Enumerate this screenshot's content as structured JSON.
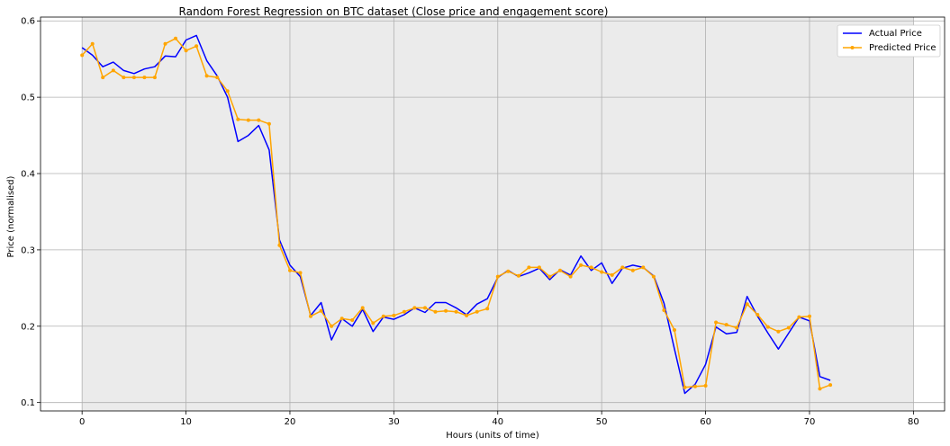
{
  "chart_data": {
    "type": "line",
    "title": "Random Forest Regression on BTC dataset (Close price and engagement score)",
    "xlabel": "Hours (units of time)",
    "ylabel": "Price (normalised)",
    "xlim": [
      -4,
      83
    ],
    "ylim": [
      0.089,
      0.605
    ],
    "xticks": [
      0,
      10,
      20,
      30,
      40,
      50,
      60,
      70,
      80
    ],
    "xtick_labels": [
      "0",
      "10",
      "20",
      "30",
      "40",
      "50",
      "60",
      "70",
      "80"
    ],
    "yticks": [
      0.1,
      0.2,
      0.3,
      0.4,
      0.5,
      0.6
    ],
    "ytick_labels": [
      "0.1",
      "0.2",
      "0.3",
      "0.4",
      "0.5",
      "0.6"
    ],
    "grid": true,
    "plot_background": "#ebebeb",
    "shaded_span": [
      0,
      80
    ],
    "legend_position": "top-right",
    "series": [
      {
        "name": "Actual Price",
        "color": "#0000ff",
        "marker": false,
        "x": [
          0,
          1,
          2,
          3,
          4,
          5,
          6,
          7,
          8,
          9,
          10,
          11,
          12,
          13,
          14,
          15,
          16,
          17,
          18,
          19,
          20,
          21,
          22,
          23,
          24,
          25,
          26,
          27,
          28,
          29,
          30,
          31,
          32,
          33,
          34,
          35,
          36,
          37,
          38,
          39,
          40,
          41,
          42,
          43,
          44,
          45,
          46,
          47,
          48,
          49,
          50,
          51,
          52,
          53,
          54,
          55,
          56,
          57,
          58,
          59,
          60,
          61,
          62,
          63,
          64,
          65,
          66,
          67,
          68,
          69,
          70,
          71,
          72
        ],
        "values": [
          0.565,
          0.555,
          0.54,
          0.546,
          0.535,
          0.531,
          0.537,
          0.54,
          0.554,
          0.553,
          0.575,
          0.581,
          0.548,
          0.528,
          0.5,
          0.442,
          0.45,
          0.463,
          0.431,
          0.313,
          0.28,
          0.265,
          0.214,
          0.231,
          0.182,
          0.21,
          0.2,
          0.222,
          0.193,
          0.212,
          0.209,
          0.215,
          0.224,
          0.218,
          0.231,
          0.231,
          0.224,
          0.215,
          0.229,
          0.236,
          0.264,
          0.273,
          0.265,
          0.27,
          0.276,
          0.261,
          0.274,
          0.267,
          0.292,
          0.273,
          0.283,
          0.256,
          0.276,
          0.28,
          0.277,
          0.266,
          0.23,
          0.17,
          0.112,
          0.124,
          0.15,
          0.199,
          0.19,
          0.192,
          0.239,
          0.213,
          0.191,
          0.17,
          0.191,
          0.212,
          0.207,
          0.134,
          0.129
        ]
      },
      {
        "name": "Predicted Price",
        "color": "#ffa500",
        "marker": true,
        "x": [
          0,
          1,
          2,
          3,
          4,
          5,
          6,
          7,
          8,
          9,
          10,
          11,
          12,
          13,
          14,
          15,
          16,
          17,
          18,
          19,
          20,
          21,
          22,
          23,
          24,
          25,
          26,
          27,
          28,
          29,
          30,
          31,
          32,
          33,
          34,
          35,
          36,
          37,
          38,
          39,
          40,
          41,
          42,
          43,
          44,
          45,
          46,
          47,
          48,
          49,
          50,
          51,
          52,
          53,
          54,
          55,
          56,
          57,
          58,
          59,
          60,
          61,
          62,
          63,
          64,
          65,
          66,
          67,
          68,
          69,
          70,
          71,
          72
        ],
        "values": [
          0.555,
          0.57,
          0.526,
          0.535,
          0.526,
          0.526,
          0.526,
          0.526,
          0.57,
          0.577,
          0.561,
          0.567,
          0.528,
          0.526,
          0.508,
          0.471,
          0.47,
          0.47,
          0.465,
          0.306,
          0.273,
          0.27,
          0.213,
          0.22,
          0.2,
          0.21,
          0.208,
          0.224,
          0.204,
          0.213,
          0.214,
          0.219,
          0.224,
          0.224,
          0.219,
          0.22,
          0.219,
          0.214,
          0.219,
          0.223,
          0.265,
          0.272,
          0.266,
          0.277,
          0.277,
          0.265,
          0.273,
          0.265,
          0.28,
          0.277,
          0.271,
          0.267,
          0.277,
          0.273,
          0.277,
          0.265,
          0.221,
          0.195,
          0.12,
          0.121,
          0.122,
          0.205,
          0.202,
          0.198,
          0.229,
          0.215,
          0.199,
          0.193,
          0.198,
          0.212,
          0.213,
          0.118,
          0.123
        ]
      }
    ]
  }
}
